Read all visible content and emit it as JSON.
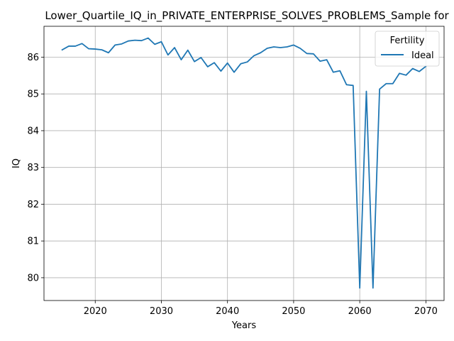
{
  "chart_data": {
    "type": "line",
    "title": "Lower_Quartile_IQ_in_PRIVATE_ENTERPRISE_SOLVES_PROBLEMS_Sample for",
    "xlabel": "Years",
    "ylabel": "IQ",
    "xlim": [
      2012.25,
      2072.75
    ],
    "ylim": [
      79.38,
      86.84
    ],
    "x_ticks": [
      2020,
      2030,
      2040,
      2050,
      2060,
      2070
    ],
    "y_ticks": [
      80,
      81,
      82,
      83,
      84,
      85,
      86
    ],
    "grid": true,
    "legend": {
      "title": "Fertility",
      "placement": "top-right"
    },
    "series": [
      {
        "name": "Ideal",
        "color": "#1f77b4",
        "x": [
          2015,
          2016,
          2017,
          2018,
          2019,
          2020,
          2021,
          2022,
          2023,
          2024,
          2025,
          2026,
          2027,
          2028,
          2029,
          2030,
          2031,
          2032,
          2033,
          2034,
          2035,
          2036,
          2037,
          2038,
          2039,
          2040,
          2041,
          2042,
          2043,
          2044,
          2045,
          2046,
          2047,
          2048,
          2049,
          2050,
          2051,
          2052,
          2053,
          2054,
          2055,
          2056,
          2057,
          2058,
          2059,
          2060,
          2061,
          2062,
          2063,
          2064,
          2065,
          2066,
          2067,
          2068,
          2069,
          2070
        ],
        "values": [
          86.2,
          86.3,
          86.3,
          86.37,
          86.23,
          86.22,
          86.2,
          86.12,
          86.33,
          86.36,
          86.44,
          86.46,
          86.45,
          86.52,
          86.35,
          86.42,
          86.06,
          86.26,
          85.93,
          86.19,
          85.88,
          85.99,
          85.74,
          85.85,
          85.62,
          85.84,
          85.59,
          85.82,
          85.87,
          86.04,
          86.12,
          86.24,
          86.28,
          86.26,
          86.28,
          86.33,
          86.24,
          86.1,
          86.09,
          85.89,
          85.93,
          85.59,
          85.63,
          85.25,
          85.23,
          79.72,
          85.07,
          79.72,
          85.13,
          85.28,
          85.28,
          85.56,
          85.51,
          85.69,
          85.61,
          85.75
        ]
      }
    ]
  }
}
